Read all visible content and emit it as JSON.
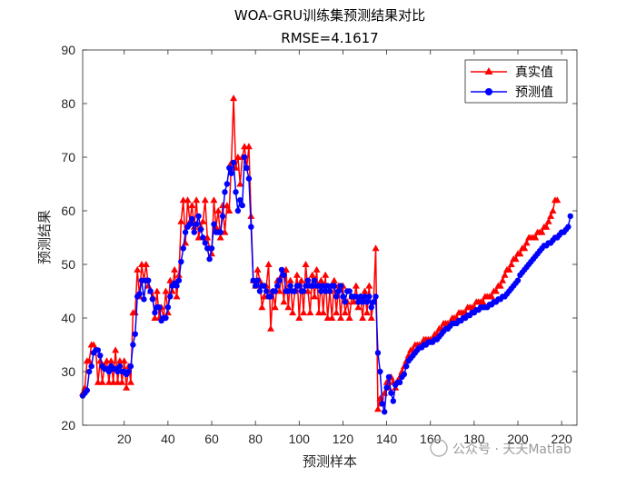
{
  "chart_data": {
    "type": "line",
    "title": "WOA-GRU训练集预测结果对比",
    "subtitle": "RMSE=4.1617",
    "xlabel": "预测样本",
    "ylabel": "预测结果",
    "xlim": [
      1,
      227
    ],
    "ylim": [
      20,
      90
    ],
    "xticks": [
      20,
      40,
      60,
      80,
      100,
      120,
      140,
      160,
      180,
      200,
      220
    ],
    "yticks": [
      20,
      30,
      40,
      50,
      60,
      70,
      80,
      90
    ],
    "grid": false,
    "legend_position": "top-right",
    "series": [
      {
        "name": "真实值",
        "color": "#ff0000",
        "marker": "triangle",
        "values": [
          26,
          27,
          32,
          32,
          35,
          35,
          34,
          28,
          32,
          28,
          31,
          32,
          28,
          32,
          28,
          34,
          28,
          32,
          28,
          32,
          27,
          31,
          28,
          41,
          41,
          49,
          44,
          50,
          47,
          50,
          46,
          45,
          44,
          40,
          45,
          40,
          42,
          40,
          45,
          41,
          47,
          45,
          49,
          44,
          48,
          58,
          62,
          54,
          62,
          58,
          61,
          57,
          62,
          55,
          57,
          58,
          62,
          55,
          53,
          52,
          62,
          57,
          60,
          55,
          61,
          56,
          61,
          60,
          69,
          81,
          68,
          70,
          65,
          70,
          72,
          68,
          72,
          59,
          47,
          46,
          49,
          47,
          42,
          44,
          46,
          50,
          38,
          45,
          42,
          47,
          45,
          48,
          43,
          49,
          42,
          47,
          41,
          45,
          48,
          40,
          47,
          41,
          50,
          45,
          41,
          48,
          44,
          49,
          41,
          47,
          41,
          48,
          40,
          45,
          40,
          47,
          41,
          46,
          40,
          46,
          41,
          43,
          40,
          44,
          43,
          46,
          42,
          44,
          40,
          45,
          41,
          46,
          40,
          43,
          53,
          23,
          25,
          24,
          26,
          28,
          27,
          29,
          28,
          27,
          28,
          29,
          30,
          31,
          32,
          33,
          34,
          34,
          35,
          35,
          35,
          35,
          36,
          36,
          36,
          36,
          36,
          37,
          37,
          38,
          38,
          39,
          39,
          39,
          39,
          40,
          40,
          40,
          41,
          41,
          41,
          41,
          42,
          42,
          42,
          42,
          43,
          43,
          43,
          43,
          44,
          44,
          44,
          44,
          45,
          45,
          46,
          46,
          47,
          48,
          49,
          49,
          50,
          51,
          51,
          52,
          52,
          53,
          53,
          54,
          55,
          55,
          55,
          55,
          56,
          56,
          56,
          57,
          57,
          58,
          59,
          60,
          62,
          62
        ]
      },
      {
        "name": "预测值",
        "color": "#0000ff",
        "marker": "circle",
        "values": [
          25.5,
          26,
          26.5,
          30,
          31,
          33.5,
          34,
          34,
          33,
          31,
          30.5,
          30.5,
          30,
          31,
          30.5,
          30.5,
          30,
          31,
          30,
          30,
          29.5,
          30,
          31,
          35,
          37,
          44,
          44.5,
          47,
          43.5,
          47,
          47,
          45,
          43.5,
          41,
          42,
          42,
          39.5,
          40,
          40,
          42,
          44,
          46,
          46.5,
          46,
          47,
          50.5,
          53,
          56,
          57,
          57.5,
          58.5,
          56,
          57.5,
          59,
          56.5,
          55,
          54,
          53,
          51,
          53,
          57.5,
          56,
          56,
          56,
          59,
          63.5,
          65,
          68,
          67,
          69,
          63.5,
          60,
          62,
          61,
          70,
          68,
          66,
          57,
          47,
          46,
          47,
          45,
          46,
          46,
          45,
          44,
          44,
          45,
          45,
          46,
          47,
          49,
          48,
          45,
          45,
          46,
          45,
          45,
          46,
          46,
          45,
          45,
          46,
          47,
          46,
          46,
          47,
          46,
          46,
          45,
          46,
          45,
          46,
          45,
          46,
          46,
          44,
          45,
          46,
          44,
          43,
          45,
          45,
          44,
          44,
          44,
          43,
          44,
          43,
          44,
          43,
          44,
          42,
          43,
          44,
          33.5,
          30,
          24,
          22.5,
          27,
          29,
          26,
          24.5,
          27.5,
          28,
          28,
          29,
          29.5,
          31,
          32,
          32.5,
          33,
          33.5,
          34,
          34.5,
          34.5,
          35,
          35,
          35.5,
          35.5,
          35.5,
          36,
          36,
          36.5,
          37,
          37.5,
          38,
          38,
          38.5,
          39,
          39,
          39,
          39.5,
          39.5,
          40,
          40,
          40.5,
          40.5,
          41,
          41,
          41.5,
          41.5,
          42,
          42,
          42,
          42,
          42.5,
          42.5,
          43,
          43,
          43.5,
          43.5,
          44,
          44,
          44.5,
          45,
          45.5,
          46,
          46.5,
          47,
          48,
          48.5,
          49,
          49.5,
          50,
          50.5,
          51,
          51.5,
          52,
          52.5,
          53,
          53.5,
          53.5,
          54,
          54,
          54.5,
          55,
          55,
          55.5,
          56,
          56,
          56.5,
          57,
          59
        ]
      }
    ]
  },
  "watermark": "公众号 · 天天Matlab"
}
